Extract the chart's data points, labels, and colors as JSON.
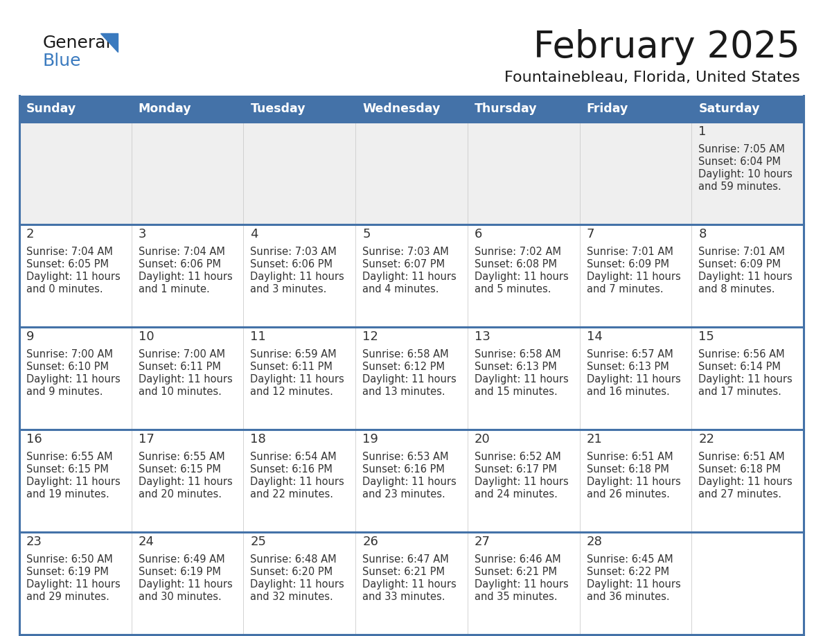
{
  "title": "February 2025",
  "subtitle": "Fountainebleau, Florida, United States",
  "header_color": "#4472a8",
  "header_text_color": "#ffffff",
  "cell_bg_week1": "#efefef",
  "cell_bg_normal": "#ffffff",
  "border_color": "#4472a8",
  "row_divider_color": "#4472a8",
  "days_of_week": [
    "Sunday",
    "Monday",
    "Tuesday",
    "Wednesday",
    "Thursday",
    "Friday",
    "Saturday"
  ],
  "text_color": "#333333",
  "day_num_color": "#333333",
  "logo_text_color": "#1a1a1a",
  "logo_blue_color": "#3a7abf",
  "title_color": "#1a1a1a",
  "subtitle_color": "#1a1a1a",
  "calendar": [
    [
      {
        "day": "",
        "sunrise": "",
        "sunset": "",
        "daylight": ""
      },
      {
        "day": "",
        "sunrise": "",
        "sunset": "",
        "daylight": ""
      },
      {
        "day": "",
        "sunrise": "",
        "sunset": "",
        "daylight": ""
      },
      {
        "day": "",
        "sunrise": "",
        "sunset": "",
        "daylight": ""
      },
      {
        "day": "",
        "sunrise": "",
        "sunset": "",
        "daylight": ""
      },
      {
        "day": "",
        "sunrise": "",
        "sunset": "",
        "daylight": ""
      },
      {
        "day": "1",
        "sunrise": "7:05 AM",
        "sunset": "6:04 PM",
        "daylight": "10 hours\nand 59 minutes."
      }
    ],
    [
      {
        "day": "2",
        "sunrise": "7:04 AM",
        "sunset": "6:05 PM",
        "daylight": "11 hours\nand 0 minutes."
      },
      {
        "day": "3",
        "sunrise": "7:04 AM",
        "sunset": "6:06 PM",
        "daylight": "11 hours\nand 1 minute."
      },
      {
        "day": "4",
        "sunrise": "7:03 AM",
        "sunset": "6:06 PM",
        "daylight": "11 hours\nand 3 minutes."
      },
      {
        "day": "5",
        "sunrise": "7:03 AM",
        "sunset": "6:07 PM",
        "daylight": "11 hours\nand 4 minutes."
      },
      {
        "day": "6",
        "sunrise": "7:02 AM",
        "sunset": "6:08 PM",
        "daylight": "11 hours\nand 5 minutes."
      },
      {
        "day": "7",
        "sunrise": "7:01 AM",
        "sunset": "6:09 PM",
        "daylight": "11 hours\nand 7 minutes."
      },
      {
        "day": "8",
        "sunrise": "7:01 AM",
        "sunset": "6:09 PM",
        "daylight": "11 hours\nand 8 minutes."
      }
    ],
    [
      {
        "day": "9",
        "sunrise": "7:00 AM",
        "sunset": "6:10 PM",
        "daylight": "11 hours\nand 9 minutes."
      },
      {
        "day": "10",
        "sunrise": "7:00 AM",
        "sunset": "6:11 PM",
        "daylight": "11 hours\nand 10 minutes."
      },
      {
        "day": "11",
        "sunrise": "6:59 AM",
        "sunset": "6:11 PM",
        "daylight": "11 hours\nand 12 minutes."
      },
      {
        "day": "12",
        "sunrise": "6:58 AM",
        "sunset": "6:12 PM",
        "daylight": "11 hours\nand 13 minutes."
      },
      {
        "day": "13",
        "sunrise": "6:58 AM",
        "sunset": "6:13 PM",
        "daylight": "11 hours\nand 15 minutes."
      },
      {
        "day": "14",
        "sunrise": "6:57 AM",
        "sunset": "6:13 PM",
        "daylight": "11 hours\nand 16 minutes."
      },
      {
        "day": "15",
        "sunrise": "6:56 AM",
        "sunset": "6:14 PM",
        "daylight": "11 hours\nand 17 minutes."
      }
    ],
    [
      {
        "day": "16",
        "sunrise": "6:55 AM",
        "sunset": "6:15 PM",
        "daylight": "11 hours\nand 19 minutes."
      },
      {
        "day": "17",
        "sunrise": "6:55 AM",
        "sunset": "6:15 PM",
        "daylight": "11 hours\nand 20 minutes."
      },
      {
        "day": "18",
        "sunrise": "6:54 AM",
        "sunset": "6:16 PM",
        "daylight": "11 hours\nand 22 minutes."
      },
      {
        "day": "19",
        "sunrise": "6:53 AM",
        "sunset": "6:16 PM",
        "daylight": "11 hours\nand 23 minutes."
      },
      {
        "day": "20",
        "sunrise": "6:52 AM",
        "sunset": "6:17 PM",
        "daylight": "11 hours\nand 24 minutes."
      },
      {
        "day": "21",
        "sunrise": "6:51 AM",
        "sunset": "6:18 PM",
        "daylight": "11 hours\nand 26 minutes."
      },
      {
        "day": "22",
        "sunrise": "6:51 AM",
        "sunset": "6:18 PM",
        "daylight": "11 hours\nand 27 minutes."
      }
    ],
    [
      {
        "day": "23",
        "sunrise": "6:50 AM",
        "sunset": "6:19 PM",
        "daylight": "11 hours\nand 29 minutes."
      },
      {
        "day": "24",
        "sunrise": "6:49 AM",
        "sunset": "6:19 PM",
        "daylight": "11 hours\nand 30 minutes."
      },
      {
        "day": "25",
        "sunrise": "6:48 AM",
        "sunset": "6:20 PM",
        "daylight": "11 hours\nand 32 minutes."
      },
      {
        "day": "26",
        "sunrise": "6:47 AM",
        "sunset": "6:21 PM",
        "daylight": "11 hours\nand 33 minutes."
      },
      {
        "day": "27",
        "sunrise": "6:46 AM",
        "sunset": "6:21 PM",
        "daylight": "11 hours\nand 35 minutes."
      },
      {
        "day": "28",
        "sunrise": "6:45 AM",
        "sunset": "6:22 PM",
        "daylight": "11 hours\nand 36 minutes."
      },
      {
        "day": "",
        "sunrise": "",
        "sunset": "",
        "daylight": ""
      }
    ]
  ]
}
